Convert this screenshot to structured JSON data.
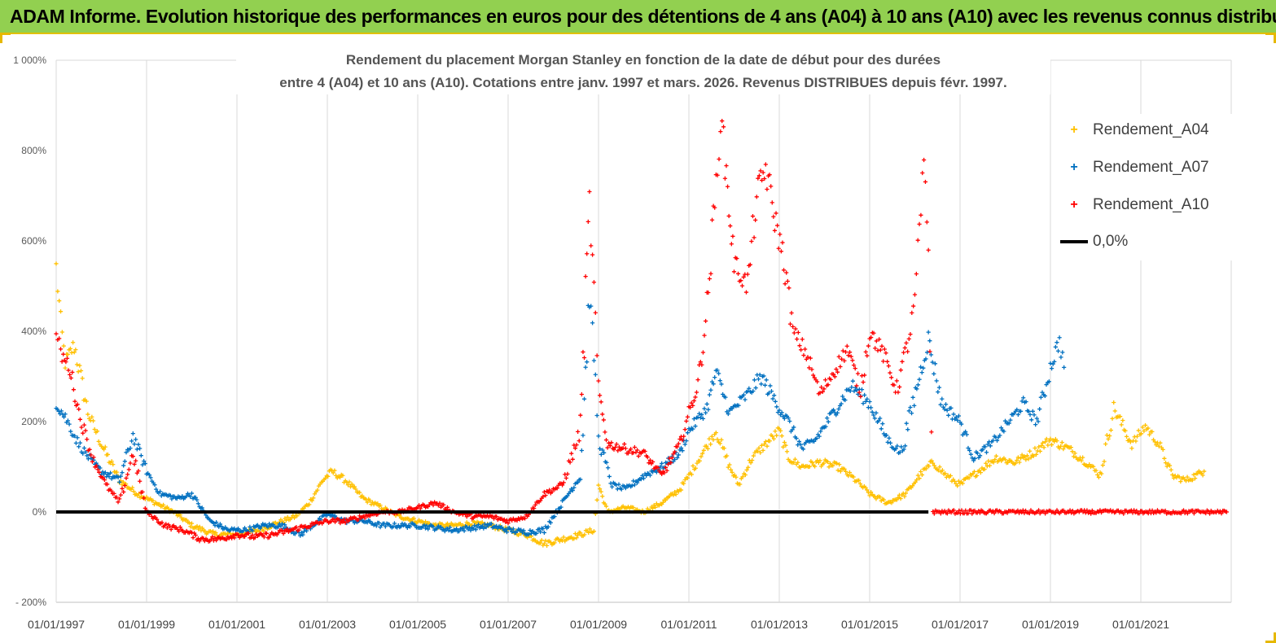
{
  "header": {
    "title": "ADAM Informe. Evolution historique des performances en euros pour des détentions de 4 ans (A04) à 10 ans (A10) avec les revenus connus distribués"
  },
  "chart_data": {
    "type": "scatter",
    "title_line1": "Rendement du placement Morgan Stanley en fonction de la date de début pour des durées",
    "title_line2": "entre 4 (A04) et 10 ans (A10).  Cotations entre janv. 1997 et mars. 2026.  Revenus DISTRIBUES depuis févr. 1997.",
    "x_tick_labels": [
      "01/01/1997",
      "01/01/1999",
      "01/01/2001",
      "01/01/2003",
      "01/01/2005",
      "01/01/2007",
      "01/01/2009",
      "01/01/2011",
      "01/01/2013",
      "01/01/2015",
      "01/01/2017",
      "01/01/2019",
      "01/01/2021"
    ],
    "x_range": [
      "01/01/1997",
      "01/01/2023"
    ],
    "y_tick_labels": [
      "1 000%",
      "800%",
      "600%",
      "400%",
      "200%",
      "0%",
      "- 200%"
    ],
    "y_range": [
      -200,
      1000
    ],
    "y_unit": "%",
    "grid": "vertical lines at each tick label",
    "legend_position": "right",
    "series": [
      {
        "name": "Rendement_A04",
        "color": "#ffc000",
        "marker": "+",
        "points": [
          [
            1997.0,
            540
          ],
          [
            1997.1,
            420
          ],
          [
            1997.2,
            330
          ],
          [
            1997.4,
            370
          ],
          [
            1997.7,
            220
          ],
          [
            1998.0,
            150
          ],
          [
            1998.4,
            70
          ],
          [
            1998.8,
            40
          ],
          [
            1999.2,
            20
          ],
          [
            1999.6,
            0
          ],
          [
            2000.0,
            -30
          ],
          [
            2000.5,
            -50
          ],
          [
            2001.0,
            -50
          ],
          [
            2001.5,
            -40
          ],
          [
            2002.0,
            -20
          ],
          [
            2002.3,
            -10
          ],
          [
            2002.6,
            20
          ],
          [
            2002.9,
            70
          ],
          [
            2003.1,
            90
          ],
          [
            2003.4,
            70
          ],
          [
            2003.8,
            30
          ],
          [
            2004.2,
            10
          ],
          [
            2004.6,
            -10
          ],
          [
            2005.0,
            -20
          ],
          [
            2005.4,
            -30
          ],
          [
            2005.8,
            -30
          ],
          [
            2006.2,
            -25
          ],
          [
            2006.6,
            -30
          ],
          [
            2007.0,
            -40
          ],
          [
            2007.4,
            -50
          ],
          [
            2007.8,
            -70
          ],
          [
            2008.2,
            -60
          ],
          [
            2008.6,
            -50
          ],
          [
            2008.9,
            -40
          ],
          [
            2009.0,
            60
          ],
          [
            2009.2,
            0
          ],
          [
            2009.6,
            10
          ],
          [
            2010.0,
            0
          ],
          [
            2010.4,
            20
          ],
          [
            2010.8,
            50
          ],
          [
            2011.0,
            80
          ],
          [
            2011.3,
            130
          ],
          [
            2011.6,
            180
          ],
          [
            2011.9,
            100
          ],
          [
            2012.1,
            60
          ],
          [
            2012.4,
            120
          ],
          [
            2012.7,
            150
          ],
          [
            2013.0,
            180
          ],
          [
            2013.2,
            120
          ],
          [
            2013.5,
            100
          ],
          [
            2013.9,
            110
          ],
          [
            2014.3,
            100
          ],
          [
            2014.7,
            70
          ],
          [
            2015.0,
            40
          ],
          [
            2015.4,
            20
          ],
          [
            2015.8,
            40
          ],
          [
            2016.1,
            80
          ],
          [
            2016.4,
            110
          ],
          [
            2016.7,
            80
          ],
          [
            2017.0,
            60
          ],
          [
            2017.4,
            90
          ],
          [
            2017.8,
            120
          ],
          [
            2018.2,
            110
          ],
          [
            2018.6,
            130
          ],
          [
            2019.0,
            160
          ],
          [
            2019.4,
            140
          ],
          [
            2019.8,
            110
          ],
          [
            2020.1,
            80
          ],
          [
            2020.4,
            230
          ],
          [
            2020.8,
            150
          ],
          [
            2021.1,
            190
          ],
          [
            2021.4,
            150
          ],
          [
            2021.7,
            80
          ],
          [
            2022.0,
            70
          ],
          [
            2022.4,
            90
          ]
        ]
      },
      {
        "name": "Rendement_A07",
        "color": "#0070c0",
        "marker": "+",
        "points": [
          [
            1997.0,
            240
          ],
          [
            1997.2,
            210
          ],
          [
            1997.5,
            150
          ],
          [
            1997.8,
            110
          ],
          [
            1998.0,
            90
          ],
          [
            1998.4,
            70
          ],
          [
            1998.7,
            170
          ],
          [
            1999.0,
            90
          ],
          [
            1999.3,
            40
          ],
          [
            1999.7,
            30
          ],
          [
            2000.0,
            40
          ],
          [
            2000.4,
            -20
          ],
          [
            2000.8,
            -40
          ],
          [
            2001.2,
            -40
          ],
          [
            2001.6,
            -30
          ],
          [
            2002.0,
            -30
          ],
          [
            2002.4,
            -50
          ],
          [
            2002.8,
            -20
          ],
          [
            2003.0,
            -5
          ],
          [
            2003.4,
            -20
          ],
          [
            2003.8,
            -20
          ],
          [
            2004.2,
            -30
          ],
          [
            2004.6,
            -30
          ],
          [
            2005.0,
            -30
          ],
          [
            2005.4,
            -35
          ],
          [
            2005.8,
            -40
          ],
          [
            2006.2,
            -35
          ],
          [
            2006.6,
            -30
          ],
          [
            2007.0,
            -40
          ],
          [
            2007.4,
            -45
          ],
          [
            2007.8,
            -40
          ],
          [
            2008.2,
            20
          ],
          [
            2008.6,
            80
          ],
          [
            2008.8,
            480
          ],
          [
            2008.9,
            350
          ],
          [
            2009.0,
            160
          ],
          [
            2009.3,
            60
          ],
          [
            2009.6,
            50
          ],
          [
            2010.0,
            80
          ],
          [
            2010.4,
            100
          ],
          [
            2010.8,
            130
          ],
          [
            2011.0,
            180
          ],
          [
            2011.4,
            230
          ],
          [
            2011.6,
            310
          ],
          [
            2011.9,
            220
          ],
          [
            2012.3,
            260
          ],
          [
            2012.6,
            300
          ],
          [
            2013.0,
            230
          ],
          [
            2013.2,
            200
          ],
          [
            2013.5,
            140
          ],
          [
            2013.8,
            160
          ],
          [
            2014.2,
            220
          ],
          [
            2014.6,
            280
          ],
          [
            2015.0,
            240
          ],
          [
            2015.4,
            160
          ],
          [
            2015.7,
            130
          ],
          [
            2016.1,
            300
          ],
          [
            2016.3,
            380
          ],
          [
            2016.6,
            240
          ],
          [
            2017.0,
            200
          ],
          [
            2017.3,
            120
          ],
          [
            2017.7,
            150
          ],
          [
            2018.0,
            190
          ],
          [
            2018.4,
            240
          ],
          [
            2018.7,
            200
          ],
          [
            2019.0,
            320
          ],
          [
            2019.2,
            380
          ],
          [
            2019.3,
            320
          ]
        ]
      },
      {
        "name": "Rendement_A10",
        "color": "#ff0000",
        "marker": "+",
        "points": [
          [
            1997.0,
            400
          ],
          [
            1997.1,
            350
          ],
          [
            1997.3,
            320
          ],
          [
            1997.5,
            220
          ],
          [
            1997.8,
            120
          ],
          [
            1998.1,
            60
          ],
          [
            1998.4,
            20
          ],
          [
            1998.7,
            130
          ],
          [
            1999.0,
            0
          ],
          [
            1999.4,
            -30
          ],
          [
            1999.8,
            -40
          ],
          [
            2000.2,
            -60
          ],
          [
            2000.6,
            -60
          ],
          [
            2001.0,
            -50
          ],
          [
            2001.4,
            -55
          ],
          [
            2001.8,
            -50
          ],
          [
            2002.2,
            -40
          ],
          [
            2002.6,
            -30
          ],
          [
            2003.0,
            -20
          ],
          [
            2003.4,
            -20
          ],
          [
            2003.8,
            -10
          ],
          [
            2004.2,
            0
          ],
          [
            2004.6,
            0
          ],
          [
            2005.0,
            10
          ],
          [
            2005.4,
            20
          ],
          [
            2005.8,
            0
          ],
          [
            2006.2,
            -10
          ],
          [
            2006.6,
            -10
          ],
          [
            2007.0,
            -20
          ],
          [
            2007.4,
            -10
          ],
          [
            2007.8,
            40
          ],
          [
            2008.2,
            60
          ],
          [
            2008.6,
            180
          ],
          [
            2008.8,
            680
          ],
          [
            2008.9,
            490
          ],
          [
            2009.0,
            270
          ],
          [
            2009.2,
            150
          ],
          [
            2009.6,
            140
          ],
          [
            2010.0,
            130
          ],
          [
            2010.4,
            80
          ],
          [
            2010.8,
            150
          ],
          [
            2011.0,
            220
          ],
          [
            2011.2,
            280
          ],
          [
            2011.4,
            450
          ],
          [
            2011.6,
            720
          ],
          [
            2011.7,
            880
          ],
          [
            2011.8,
            780
          ],
          [
            2012.0,
            550
          ],
          [
            2012.3,
            500
          ],
          [
            2012.5,
            700
          ],
          [
            2012.7,
            760
          ],
          [
            2012.9,
            650
          ],
          [
            2013.1,
            560
          ],
          [
            2013.3,
            400
          ],
          [
            2013.6,
            350
          ],
          [
            2013.9,
            260
          ],
          [
            2014.2,
            310
          ],
          [
            2014.5,
            360
          ],
          [
            2014.8,
            270
          ],
          [
            2015.0,
            400
          ],
          [
            2015.3,
            350
          ],
          [
            2015.6,
            270
          ],
          [
            2015.9,
            400
          ],
          [
            2016.0,
            470
          ],
          [
            2016.1,
            620
          ],
          [
            2016.2,
            760
          ],
          [
            2016.3,
            580
          ],
          [
            2016.4,
            0
          ],
          [
            2022.9,
            0
          ]
        ]
      },
      {
        "name": "0,0%",
        "color": "#000000",
        "marker": "line",
        "points": [
          [
            1997.0,
            0
          ],
          [
            2016.3,
            0
          ]
        ]
      }
    ]
  }
}
